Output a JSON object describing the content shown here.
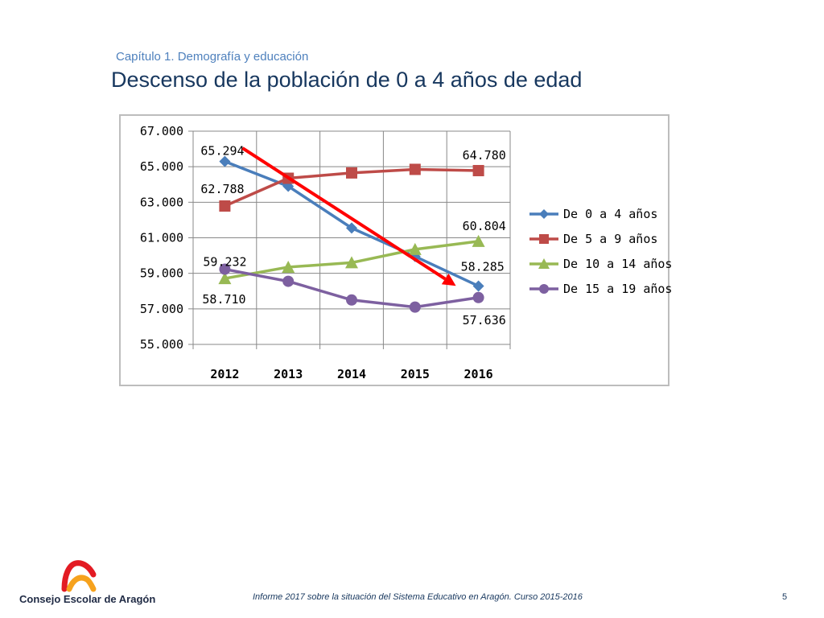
{
  "slide": {
    "chapter": "Capítulo 1. Demografía y educación",
    "title": "Descenso de la población de 0 a 4 años de edad",
    "footer": "Informe 2017 sobre la situación del Sistema Educativo en Aragón. Curso 2015-2016",
    "page_number": "5",
    "logo_text": "Consejo Escolar de Aragón"
  },
  "chart_data": {
    "type": "line",
    "title": "",
    "xlabel": "",
    "ylabel": "",
    "categories": [
      "2012",
      "2013",
      "2014",
      "2015",
      "2016"
    ],
    "ylim": [
      55000,
      67000
    ],
    "yticks": [
      55000,
      57000,
      59000,
      61000,
      63000,
      65000,
      67000
    ],
    "ytick_labels": [
      "55.000",
      "57.000",
      "59.000",
      "61.000",
      "63.000",
      "65.000",
      "67.000"
    ],
    "grid": true,
    "legend_position": "right",
    "series": [
      {
        "name": "De 0 a 4 años",
        "color": "#4a7ebb",
        "marker": "diamond",
        "values": [
          65294,
          63900,
          61550,
          59950,
          58285
        ],
        "labels": [
          {
            "index": 0,
            "text": "65.294"
          },
          {
            "index": 4,
            "text": "58.285"
          }
        ]
      },
      {
        "name": "De 5 a 9 años",
        "color": "#be4b48",
        "marker": "square",
        "values": [
          62788,
          64350,
          64650,
          64850,
          64780
        ],
        "labels": [
          {
            "index": 0,
            "text": "62.788"
          },
          {
            "index": 4,
            "text": "64.780"
          }
        ]
      },
      {
        "name": "De 10 a  14 años",
        "color": "#98b954",
        "marker": "triangle",
        "values": [
          58710,
          59350,
          59600,
          60350,
          60804
        ],
        "labels": [
          {
            "index": 0,
            "text": "58.710"
          },
          {
            "index": 4,
            "text": "60.804"
          }
        ]
      },
      {
        "name": "De 15 a 19 años",
        "color": "#7d60a0",
        "marker": "circle",
        "values": [
          59232,
          58550,
          57500,
          57100,
          57636
        ],
        "labels": [
          {
            "index": 0,
            "text": "59.232"
          },
          {
            "index": 4,
            "text": "57.636"
          }
        ]
      }
    ],
    "annotations": [
      {
        "type": "arrow",
        "color": "#ff0000",
        "from": {
          "x": "2012",
          "y": 66000
        },
        "to": {
          "x": "2016",
          "y": 59200
        }
      }
    ]
  }
}
